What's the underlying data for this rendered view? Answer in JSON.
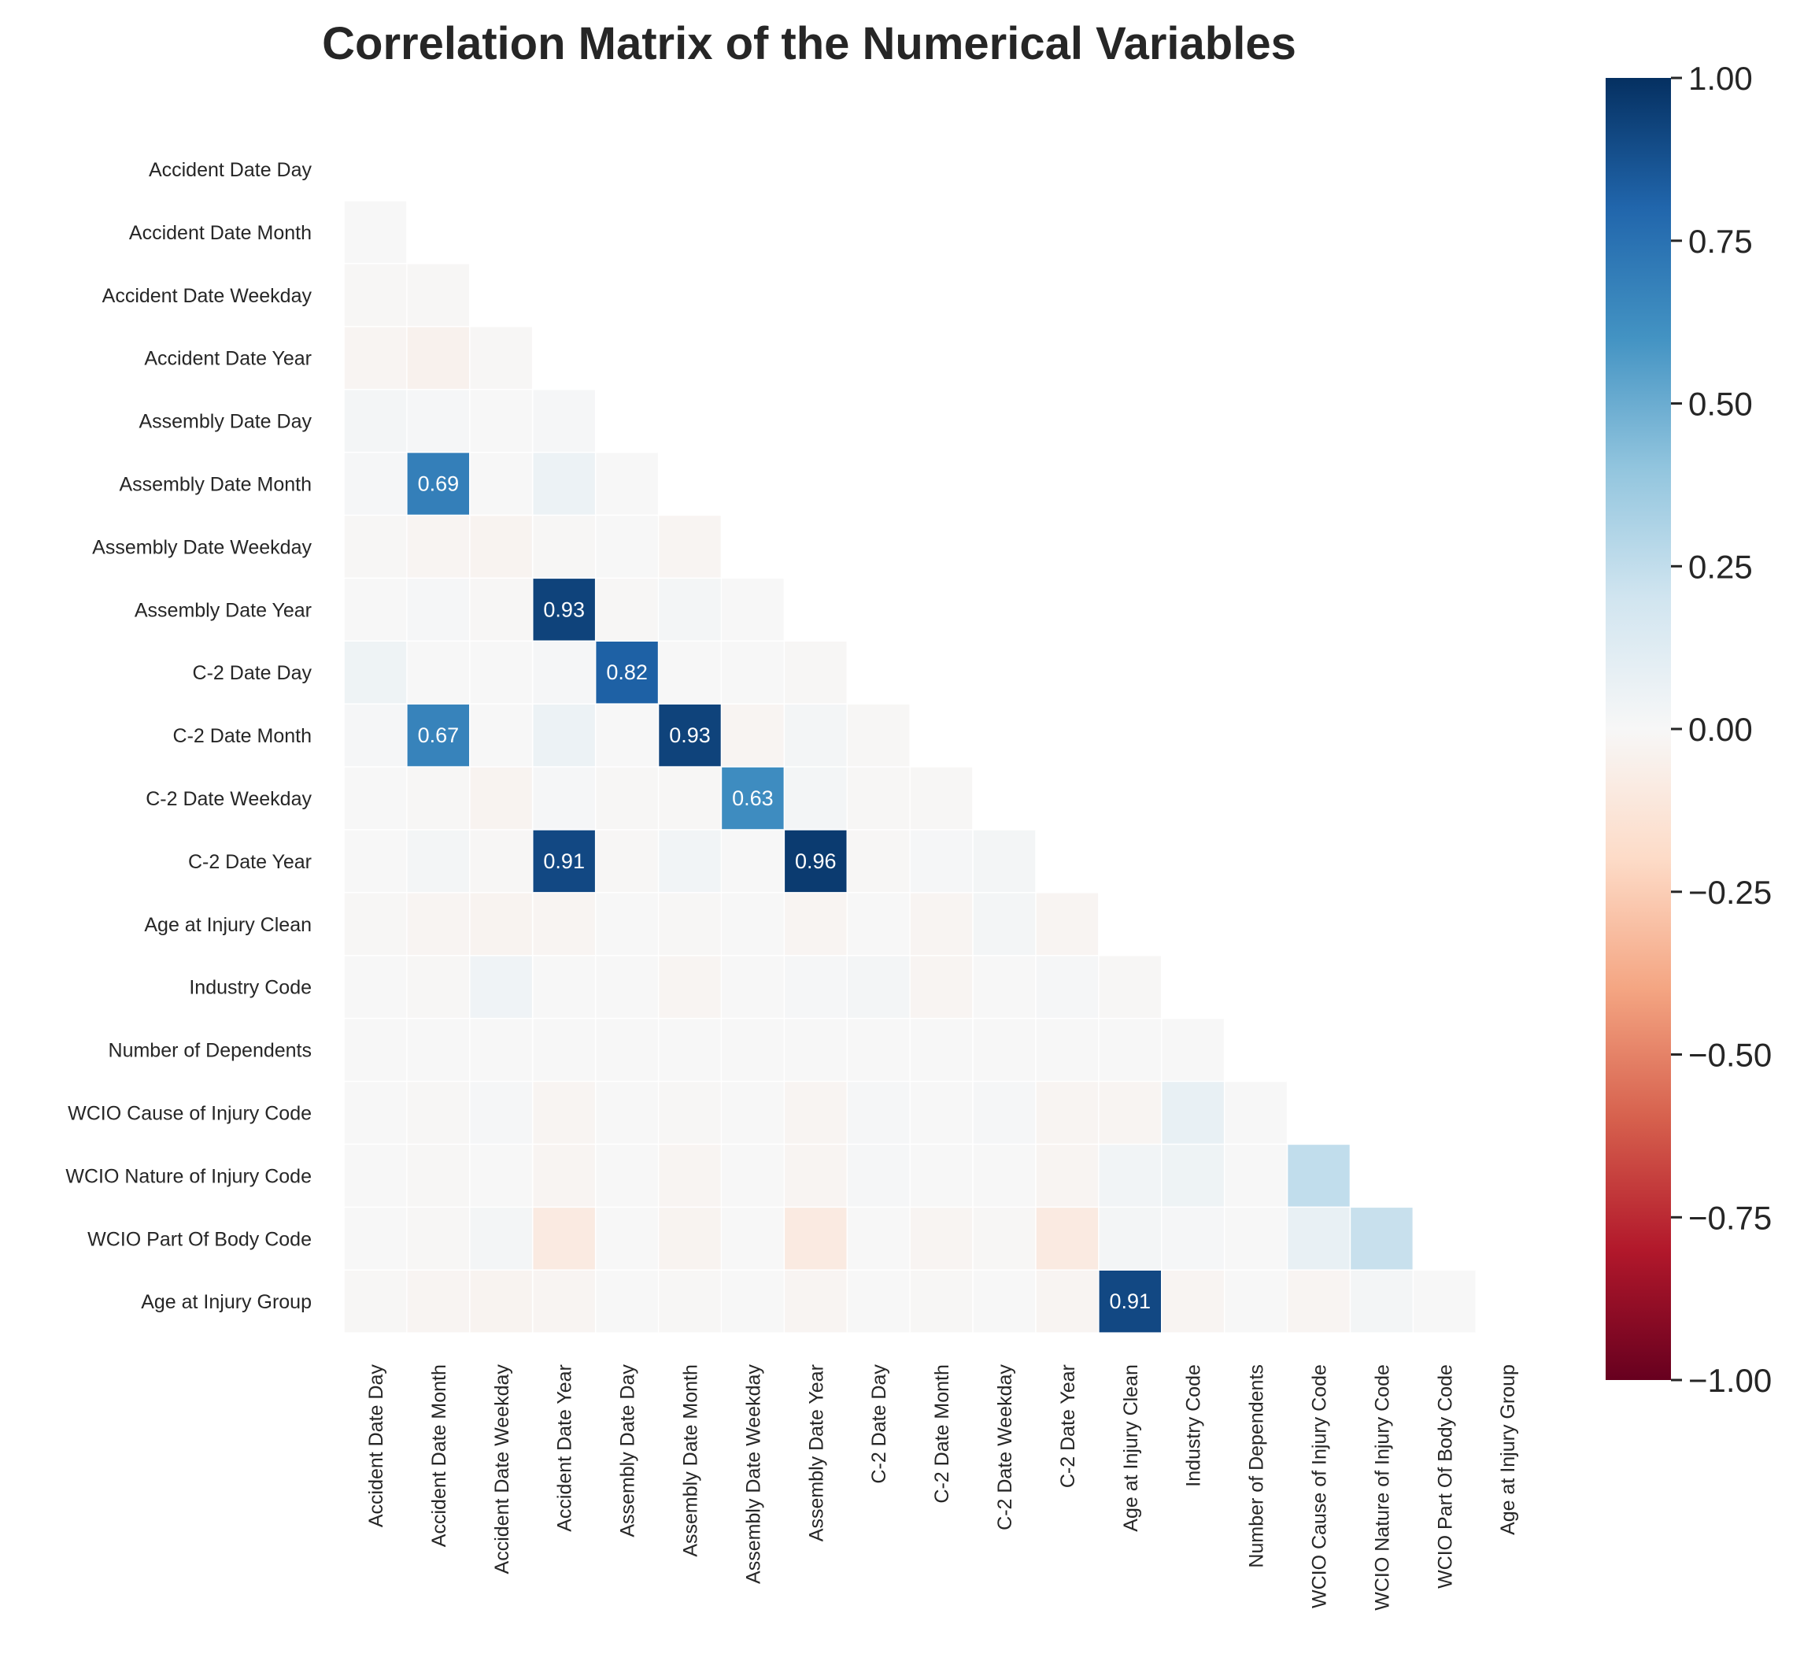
{
  "chart_data": {
    "type": "heatmap",
    "title": "Correlation Matrix of the Numerical Variables",
    "variables": [
      "Accident Date Day",
      "Accident Date Month",
      "Accident Date Weekday",
      "Accident Date Year",
      "Assembly Date Day",
      "Assembly Date Month",
      "Assembly Date Weekday",
      "Assembly Date Year",
      "C-2 Date Day",
      "C-2 Date Month",
      "C-2 Date Weekday",
      "C-2 Date Year",
      "Age at Injury Clean",
      "Industry Code",
      "Number of Dependents",
      "WCIO Cause of Injury Code",
      "WCIO Nature of Injury Code",
      "WCIO Part Of Body Code",
      "Age at Injury Group"
    ],
    "mask": "upper-triangle-including-diagonal",
    "lower_triangle_values": [
      [],
      [
        0.0
      ],
      [
        -0.01,
        -0.01
      ],
      [
        -0.02,
        -0.04,
        -0.01
      ],
      [
        0.02,
        0.01,
        0.0,
        0.01
      ],
      [
        0.01,
        0.69,
        0.0,
        0.06,
        0.0
      ],
      [
        -0.01,
        -0.02,
        -0.03,
        -0.01,
        0.0,
        -0.02
      ],
      [
        0.0,
        0.01,
        -0.01,
        0.93,
        -0.01,
        0.02,
        0.0
      ],
      [
        0.05,
        0.0,
        0.0,
        0.01,
        0.82,
        0.0,
        0.0,
        -0.01
      ],
      [
        0.01,
        0.67,
        0.0,
        0.06,
        0.0,
        0.93,
        -0.02,
        0.02,
        -0.01
      ],
      [
        0.0,
        -0.01,
        -0.03,
        0.01,
        -0.01,
        -0.01,
        0.63,
        0.02,
        -0.01,
        -0.01
      ],
      [
        0.0,
        0.02,
        -0.01,
        0.91,
        -0.01,
        0.03,
        0.0,
        0.96,
        -0.01,
        0.01,
        0.02
      ],
      [
        -0.01,
        -0.02,
        -0.03,
        -0.02,
        0.0,
        -0.01,
        0.0,
        -0.02,
        0.0,
        -0.02,
        0.02,
        -0.02
      ],
      [
        0.0,
        -0.01,
        0.04,
        0.0,
        0.0,
        -0.02,
        0.0,
        0.01,
        0.02,
        -0.02,
        0.0,
        0.01,
        -0.01
      ],
      [
        0.0,
        0.0,
        0.0,
        0.0,
        0.0,
        0.0,
        0.0,
        0.0,
        0.0,
        0.0,
        0.0,
        0.0,
        0.0,
        0.0
      ],
      [
        0.0,
        -0.01,
        0.01,
        -0.02,
        0.0,
        -0.01,
        0.0,
        -0.02,
        0.01,
        0.0,
        0.01,
        -0.02,
        -0.02,
        0.08,
        0.0
      ],
      [
        0.0,
        -0.01,
        0.0,
        -0.02,
        0.0,
        -0.02,
        0.0,
        -0.02,
        0.01,
        0.0,
        0.0,
        -0.02,
        0.03,
        0.05,
        0.0,
        0.25
      ],
      [
        0.0,
        -0.01,
        0.02,
        -0.09,
        0.0,
        -0.03,
        0.0,
        -0.09,
        0.0,
        -0.02,
        -0.01,
        -0.09,
        0.02,
        0.01,
        0.0,
        0.08,
        0.23
      ],
      [
        -0.01,
        -0.02,
        -0.03,
        -0.02,
        0.0,
        -0.01,
        0.0,
        -0.02,
        0.0,
        -0.01,
        0.0,
        -0.02,
        0.91,
        -0.02,
        0.0,
        -0.02,
        0.02,
        0.0
      ]
    ],
    "annotation_threshold": 0.6,
    "colormap": "RdBu",
    "vmin": -1.0,
    "vmax": 1.0,
    "colorbar_ticks": [
      "1.00",
      "0.75",
      "0.50",
      "0.25",
      "0.00",
      "−0.25",
      "−0.50",
      "−0.75",
      "−1.00"
    ],
    "colorbar_tick_values": [
      1.0,
      0.75,
      0.5,
      0.25,
      0.0,
      -0.25,
      -0.5,
      -0.75,
      -1.0
    ],
    "colorbar_colors": {
      "dark_red": "#67001f",
      "red": "#b2182b",
      "salmon": "#d6604d",
      "light_orange": "#f4a582",
      "peach": "#fddbc7",
      "neutral": "#f7f7f7",
      "light_blue": "#d1e5f0",
      "sky": "#92c5de",
      "blue": "#4393c3",
      "strong_blue": "#2166ac",
      "navy": "#053061"
    }
  }
}
